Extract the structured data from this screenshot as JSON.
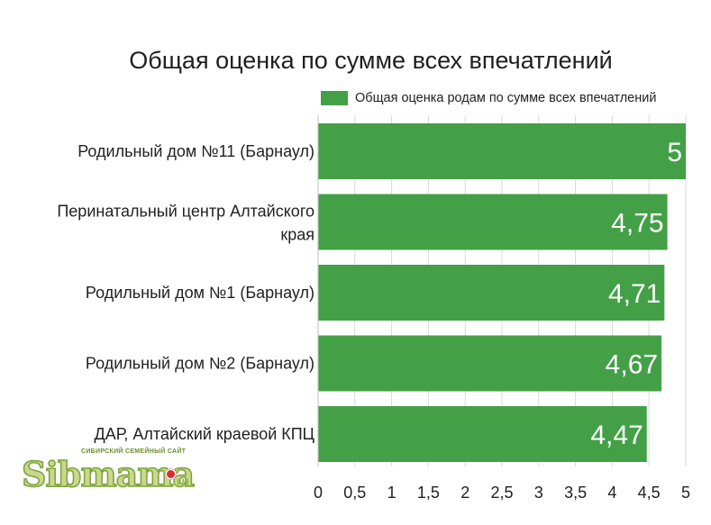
{
  "chart_data": {
    "type": "bar",
    "orientation": "horizontal",
    "title": "Общая оценка по сумме всех впечатлений",
    "categories": [
      "Родильный дом №11 (Барнаул)",
      "Перинатальный центр Алтайского края",
      "Родильный дом №1 (Барнаул)",
      "Родильный дом №2 (Барнаул)",
      "ДАР, Алтайский краевой КПЦ"
    ],
    "series": [
      {
        "name": "Общая оценка родам по сумме всех впечатлений",
        "values": [
          5,
          4.75,
          4.71,
          4.67,
          4.47
        ],
        "labels": [
          "5",
          "4,75",
          "4,71",
          "4,67",
          "4,47"
        ],
        "color": "#43a047"
      }
    ],
    "xlim": [
      0,
      5
    ],
    "x_ticks": [
      "0",
      "0,5",
      "1",
      "1,5",
      "2",
      "2,5",
      "3",
      "3,5",
      "4",
      "4,5",
      "5"
    ],
    "grid": "vertical",
    "legend_position": "top-right"
  },
  "logo": {
    "tagline": "СИБИРСКИЙ СЕМЕЙНЫЙ САЙТ",
    "wordmark": "Sibmama",
    "suffix": ".ru"
  }
}
